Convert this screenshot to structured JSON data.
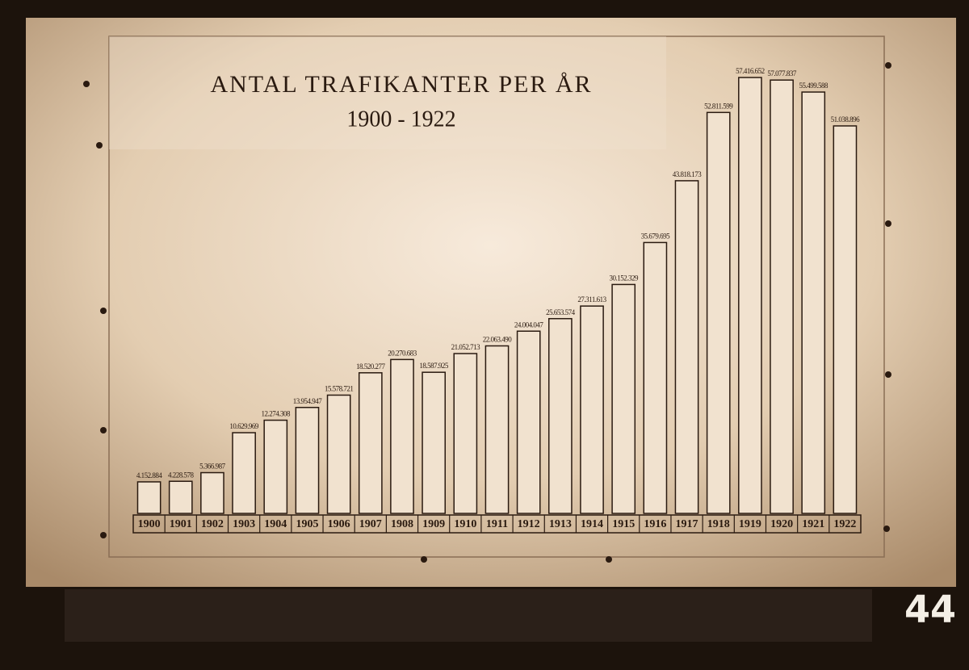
{
  "chart_data": {
    "type": "bar",
    "title": "ANTAL TRAFIKANTER PER ÅR",
    "subtitle": "1900 - 1922",
    "annotation": "44",
    "categories": [
      "1900",
      "1901",
      "1902",
      "1903",
      "1904",
      "1905",
      "1906",
      "1907",
      "1908",
      "1909",
      "1910",
      "1911",
      "1912",
      "1913",
      "1914",
      "1915",
      "1916",
      "1917",
      "1918",
      "1919",
      "1920",
      "1921",
      "1922"
    ],
    "values": [
      4152884,
      4228578,
      5366987,
      10629969,
      12274308,
      13954947,
      15578721,
      18520277,
      20270683,
      18587925,
      21052713,
      22063490,
      24004047,
      25653574,
      27311613,
      30152329,
      35679695,
      43818173,
      52811599,
      57416652,
      57077837,
      55499588,
      51038896
    ],
    "value_labels": [
      "4.152.884",
      "4.228.578",
      "5.366.987",
      "10.629.969",
      "12.274.308",
      "13.954.947",
      "15.578.721",
      "18.520.277",
      "20.270.683",
      "18.587.925",
      "21.052.713",
      "22.063.490",
      "24.004.047",
      "25.653.574",
      "27.311.613",
      "30.152.329",
      "35.679.695",
      "43.818.173",
      "52.811.599",
      "57.416.652",
      "57.077.837",
      "55.499.588",
      "51.038.896"
    ],
    "color": "#f1e2cf"
  }
}
